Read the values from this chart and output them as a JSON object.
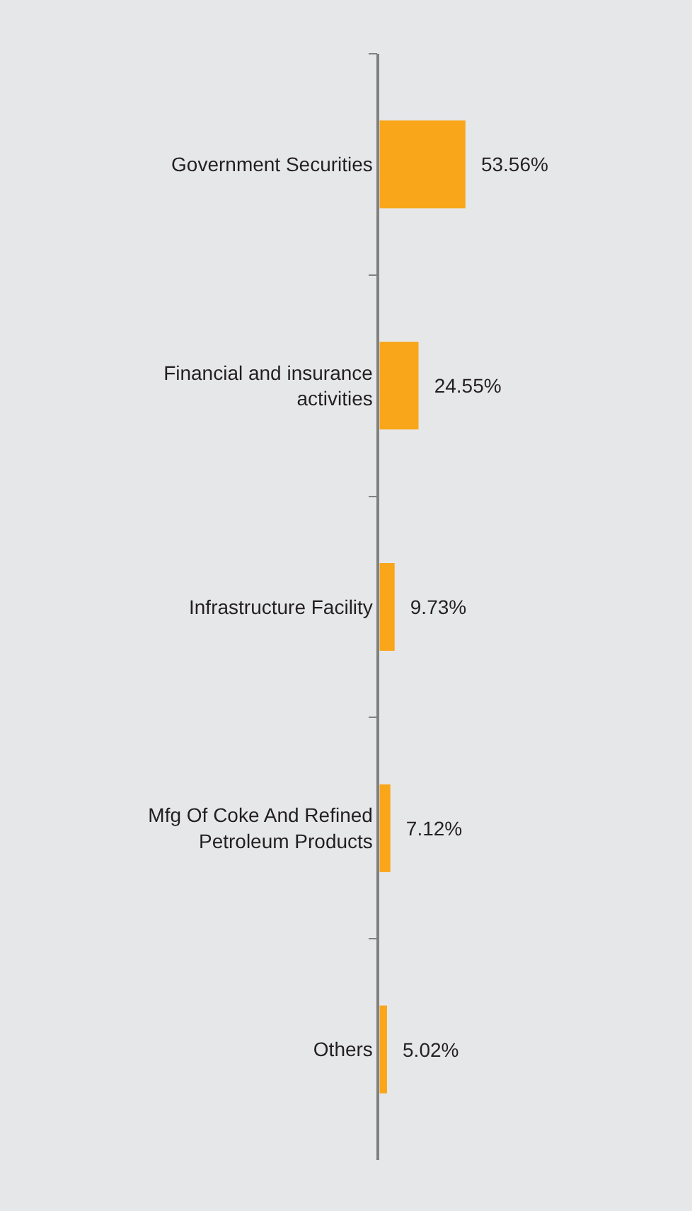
{
  "chart_data": {
    "type": "bar",
    "orientation": "horizontal",
    "categories": [
      "Government Securities",
      "Financial and insurance activities",
      "Infrastructure Facility",
      "Mfg Of Coke And Refined Petroleum Products",
      "Others"
    ],
    "values": [
      53.56,
      24.55,
      9.73,
      7.12,
      5.02
    ],
    "value_labels": [
      "53.56%",
      "24.55%",
      "9.73%",
      "7.12%",
      "5.02%"
    ],
    "color": "#f9a61a",
    "tick_labels": "y",
    "grid": false,
    "legend": false
  }
}
